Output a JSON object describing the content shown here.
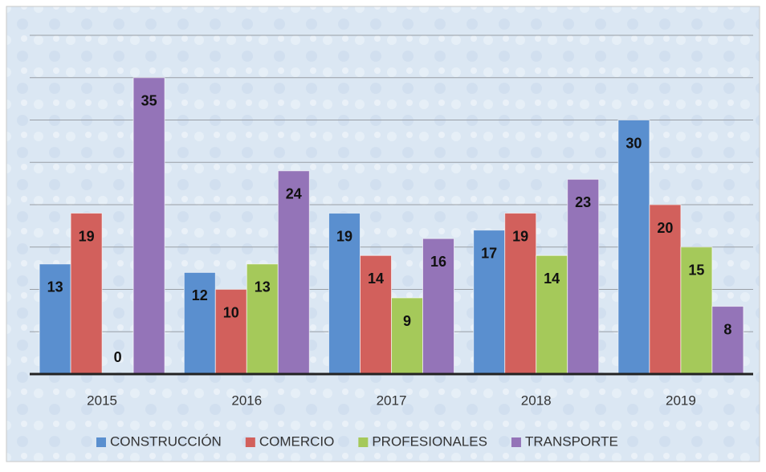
{
  "chart_data": {
    "type": "bar",
    "categories": [
      "2015",
      "2016",
      "2017",
      "2018",
      "2019"
    ],
    "series": [
      {
        "name": "CONSTRUCCIÓN",
        "color": "#5a8fcf",
        "values": [
          13,
          12,
          19,
          17,
          30
        ]
      },
      {
        "name": "COMERCIO",
        "color": "#d2605c",
        "values": [
          19,
          10,
          14,
          19,
          20
        ]
      },
      {
        "name": "PROFESIONALES",
        "color": "#a5c95a",
        "values": [
          0,
          13,
          9,
          14,
          15
        ]
      },
      {
        "name": "TRANSPORTE",
        "color": "#9474b8",
        "values": [
          35,
          24,
          16,
          23,
          8
        ]
      }
    ],
    "ylim": [
      0,
      40
    ],
    "yticks": [
      0,
      5,
      10,
      15,
      20,
      25,
      30,
      35,
      40
    ],
    "grid": true,
    "legend": "bottom"
  }
}
